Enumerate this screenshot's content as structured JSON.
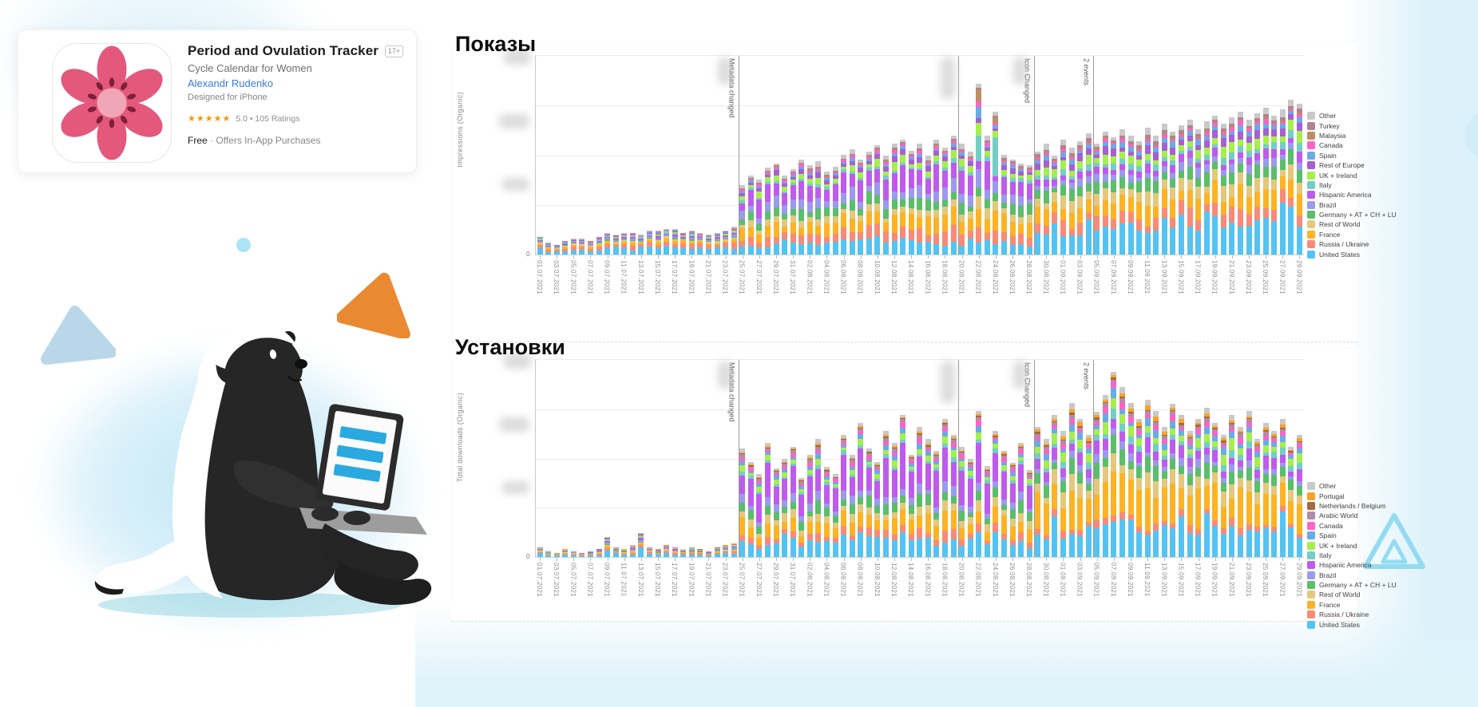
{
  "app_card": {
    "title": "Period and Ovulation Tracker",
    "age_rating": "17+",
    "subtitle": "Cycle Calendar for Women",
    "developer": "Alexandr Rudenko",
    "platform_note": "Designed for iPhone",
    "stars": "★★★★★",
    "rating_text": "5.0 • 105 Ratings",
    "price_free": "Free",
    "price_rest": "· Offers In-App Purchases"
  },
  "theme": {
    "glow_blue": "#cfeaf6",
    "orange_triangle": "#e98a33",
    "light_blue_triangle": "#b9d7e8",
    "cyan_outline": "#93dbf2",
    "laptop_screen_bars": "#2aa9e0",
    "flower_petal": "#e4587c",
    "flower_center": "#f0a6b6"
  },
  "dates": [
    "01.07.2021",
    "02.07.2021",
    "03.07.2021",
    "04.07.2021",
    "05.07.2021",
    "06.07.2021",
    "07.07.2021",
    "08.07.2021",
    "09.07.2021",
    "10.07.2021",
    "11.07.2021",
    "12.07.2021",
    "13.07.2021",
    "14.07.2021",
    "15.07.2021",
    "16.07.2021",
    "17.07.2021",
    "18.07.2021",
    "19.07.2021",
    "20.07.2021",
    "21.07.2021",
    "22.07.2021",
    "23.07.2021",
    "24.07.2021",
    "25.07.2021",
    "26.07.2021",
    "27.07.2021",
    "28.07.2021",
    "29.07.2021",
    "30.07.2021",
    "31.07.2021",
    "01.08.2021",
    "02.08.2021",
    "03.08.2021",
    "04.08.2021",
    "05.08.2021",
    "06.08.2021",
    "07.08.2021",
    "08.08.2021",
    "09.08.2021",
    "10.08.2021",
    "11.08.2021",
    "12.08.2021",
    "13.08.2021",
    "14.08.2021",
    "15.08.2021",
    "16.08.2021",
    "17.08.2021",
    "18.08.2021",
    "19.08.2021",
    "20.08.2021",
    "21.08.2021",
    "22.08.2021",
    "23.08.2021",
    "24.08.2021",
    "25.08.2021",
    "26.08.2021",
    "27.08.2021",
    "28.08.2021",
    "29.08.2021",
    "30.08.2021",
    "31.08.2021",
    "01.09.2021",
    "02.09.2021",
    "03.09.2021",
    "04.09.2021",
    "05.09.2021",
    "06.09.2021",
    "07.09.2021",
    "08.09.2021",
    "09.09.2021",
    "10.09.2021",
    "11.09.2021",
    "12.09.2021",
    "13.09.2021",
    "14.09.2021",
    "15.09.2021",
    "16.09.2021",
    "17.09.2021",
    "18.09.2021",
    "19.09.2021",
    "20.09.2021",
    "21.09.2021",
    "22.09.2021",
    "23.09.2021",
    "24.09.2021",
    "25.09.2021",
    "26.09.2021",
    "27.09.2021",
    "28.09.2021",
    "29.09.2021"
  ],
  "tick_every": 2,
  "chart_data": [
    {
      "type": "bar",
      "stacked": true,
      "title": "Показы",
      "ylabel": "Impressions (Organic)",
      "y_origin_label": "0",
      "y_tick_values_redacted": true,
      "legend_position": "right",
      "legend": [
        {
          "label": "Other",
          "color": "#c9c9c9"
        },
        {
          "label": "Turkey",
          "color": "#b5808f"
        },
        {
          "label": "Malaysia",
          "color": "#bd8d62"
        },
        {
          "label": "Canada",
          "color": "#ff63c5"
        },
        {
          "label": "Spain",
          "color": "#6aabe6"
        },
        {
          "label": "Rest of Europe",
          "color": "#a75fd1"
        },
        {
          "label": "UK + Ireland",
          "color": "#a5ee4e"
        },
        {
          "label": "Italy",
          "color": "#73cfc5"
        },
        {
          "label": "Hispanic America",
          "color": "#bf5bec"
        },
        {
          "label": "Brazil",
          "color": "#9b9aec"
        },
        {
          "label": "Germany + AT + CH + LU",
          "color": "#5abe6b"
        },
        {
          "label": "Rest of World",
          "color": "#e4c87c"
        },
        {
          "label": "France",
          "color": "#fdb324"
        },
        {
          "label": "Russia / Ukraine",
          "color": "#f98a78"
        },
        {
          "label": "United States",
          "color": "#55c3f2"
        }
      ],
      "stack_order": [
        "United States",
        "Russia / Ukraine",
        "France",
        "Rest of World",
        "Germany + AT + CH + LU",
        "Brazil",
        "Hispanic America",
        "Italy",
        "UK + Ireland",
        "Rest of Europe",
        "Spain",
        "Canada",
        "Malaysia",
        "Turkey",
        "Other"
      ],
      "totals": [
        9,
        6,
        5,
        7,
        8,
        8,
        7,
        9,
        11,
        10,
        11,
        11,
        10,
        12,
        12,
        13,
        13,
        11,
        12,
        11,
        10,
        11,
        12,
        14,
        35,
        40,
        38,
        44,
        46,
        40,
        43,
        48,
        45,
        47,
        42,
        44,
        50,
        53,
        48,
        52,
        55,
        50,
        56,
        58,
        52,
        56,
        50,
        58,
        54,
        60,
        56,
        52,
        86,
        60,
        72,
        50,
        48,
        46,
        45,
        52,
        56,
        50,
        58,
        54,
        57,
        61,
        56,
        62,
        59,
        63,
        60,
        57,
        64,
        60,
        66,
        62,
        65,
        68,
        63,
        67,
        70,
        66,
        69,
        72,
        68,
        71,
        74,
        70,
        73,
        78,
        76
      ],
      "fraction_sets": {
        "early": [
          0.28,
          0.18,
          0.1,
          0.08,
          0.04,
          0.05,
          0.06,
          0.04,
          0.03,
          0.03,
          0.02,
          0.02,
          0.01,
          0.02,
          0.04
        ],
        "growth": [
          0.13,
          0.1,
          0.13,
          0.07,
          0.09,
          0.09,
          0.17,
          0.03,
          0.05,
          0.04,
          0.02,
          0.02,
          0.01,
          0.01,
          0.04
        ],
        "spike": [
          0.06,
          0.08,
          0.14,
          0.06,
          0.06,
          0.1,
          0.04,
          0.22,
          0.05,
          0.02,
          0.04,
          0.04,
          0.05,
          0.01,
          0.03
        ],
        "late": [
          0.27,
          0.09,
          0.11,
          0.08,
          0.08,
          0.05,
          0.05,
          0.04,
          0.06,
          0.05,
          0.03,
          0.02,
          0.01,
          0.02,
          0.04
        ]
      },
      "phases": [
        {
          "from": 1,
          "to": 24,
          "set": "early"
        },
        {
          "from": 25,
          "to": 52,
          "set": "growth"
        },
        {
          "from": 53,
          "to": 53,
          "set": "spike"
        },
        {
          "from": 54,
          "to": 54,
          "set": "growth"
        },
        {
          "from": 55,
          "to": 55,
          "set": "spike"
        },
        {
          "from": 56,
          "to": 59,
          "set": "growth"
        },
        {
          "from": 60,
          "to": 91,
          "set": "late"
        }
      ],
      "events": [
        {
          "day": 24,
          "label": "Metadata changed",
          "redacted_value": true
        },
        {
          "day": 50,
          "label": "",
          "redacted_value": true
        },
        {
          "day": 59,
          "label": "Icon Changed",
          "redacted_value": true
        },
        {
          "day": 66,
          "label": "2 events",
          "redacted_value": false
        }
      ]
    },
    {
      "type": "bar",
      "stacked": true,
      "title": "Установки",
      "ylabel": "Total downloads (Organic)",
      "y_origin_label": "0",
      "y_tick_values_redacted": true,
      "legend_position": "right",
      "legend": [
        {
          "label": "Other",
          "color": "#c9c9c9"
        },
        {
          "label": "Portugal",
          "color": "#ffa226"
        },
        {
          "label": "Netherlands / Belgium",
          "color": "#a7693f"
        },
        {
          "label": "Arabic World",
          "color": "#b18ba7"
        },
        {
          "label": "Canada",
          "color": "#ff63c5"
        },
        {
          "label": "Spain",
          "color": "#6aabe6"
        },
        {
          "label": "UK + Ireland",
          "color": "#a5ee4e"
        },
        {
          "label": "Italy",
          "color": "#73cfc5"
        },
        {
          "label": "Hispanic America",
          "color": "#bf5bec"
        },
        {
          "label": "Brazil",
          "color": "#9b9aec"
        },
        {
          "label": "Germany + AT + CH + LU",
          "color": "#5abe6b"
        },
        {
          "label": "Rest of World",
          "color": "#e4c87c"
        },
        {
          "label": "France",
          "color": "#fdb324"
        },
        {
          "label": "Russia / Ukraine",
          "color": "#f98a78"
        },
        {
          "label": "United States",
          "color": "#55c3f2"
        }
      ],
      "stack_order": [
        "United States",
        "Russia / Ukraine",
        "France",
        "Rest of World",
        "Germany + AT + CH + LU",
        "Brazil",
        "Hispanic America",
        "Italy",
        "UK + Ireland",
        "Spain",
        "Canada",
        "Arabic World",
        "Netherlands / Belgium",
        "Portugal",
        "Other"
      ],
      "totals": [
        5,
        3,
        2,
        4,
        3,
        2,
        3,
        4,
        10,
        5,
        4,
        6,
        12,
        5,
        4,
        6,
        5,
        4,
        5,
        4,
        3,
        5,
        6,
        7,
        55,
        48,
        42,
        58,
        45,
        50,
        56,
        40,
        52,
        60,
        46,
        42,
        62,
        52,
        68,
        55,
        48,
        64,
        58,
        72,
        52,
        66,
        60,
        54,
        70,
        62,
        56,
        50,
        74,
        46,
        64,
        54,
        48,
        58,
        44,
        66,
        60,
        72,
        64,
        78,
        70,
        62,
        74,
        82,
        94,
        86,
        78,
        70,
        80,
        74,
        66,
        78,
        72,
        64,
        70,
        76,
        68,
        62,
        72,
        66,
        74,
        60,
        68,
        64,
        70,
        56,
        62
      ],
      "fraction_sets": {
        "early": [
          0.3,
          0.12,
          0.1,
          0.08,
          0.05,
          0.06,
          0.08,
          0.03,
          0.04,
          0.03,
          0.03,
          0.02,
          0.02,
          0.02,
          0.02
        ],
        "growth": [
          0.16,
          0.06,
          0.12,
          0.07,
          0.08,
          0.06,
          0.25,
          0.03,
          0.04,
          0.03,
          0.03,
          0.02,
          0.01,
          0.01,
          0.03
        ],
        "late": [
          0.24,
          0.04,
          0.2,
          0.08,
          0.08,
          0.04,
          0.07,
          0.04,
          0.06,
          0.04,
          0.03,
          0.02,
          0.01,
          0.02,
          0.03
        ]
      },
      "phases": [
        {
          "from": 1,
          "to": 24,
          "set": "early"
        },
        {
          "from": 25,
          "to": 59,
          "set": "growth"
        },
        {
          "from": 60,
          "to": 91,
          "set": "late"
        }
      ],
      "events": [
        {
          "day": 24,
          "label": "Metadata changed",
          "redacted_value": true
        },
        {
          "day": 50,
          "label": "",
          "redacted_value": true
        },
        {
          "day": 59,
          "label": "Icon Changed",
          "redacted_value": true
        },
        {
          "day": 66,
          "label": "2 events",
          "redacted_value": false
        }
      ]
    }
  ]
}
